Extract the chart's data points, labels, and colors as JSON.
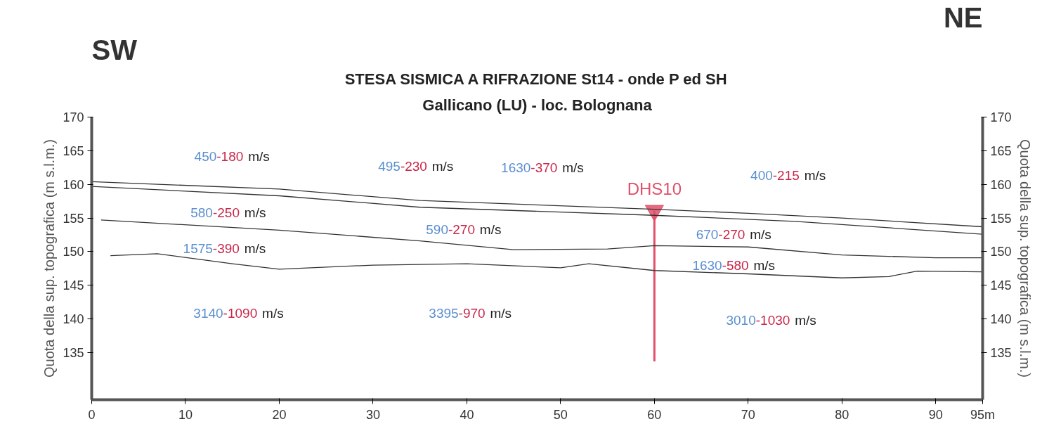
{
  "chart_data": {
    "type": "line",
    "title": "STESA SISMICA A RIFRAZIONE St14 - onde P ed SH",
    "subtitle": "Gallicano (LU) - loc. Bolognana",
    "ylabel": "Quota della sup. topografica (m s.l.m.)",
    "y2label": "Quota della sup. topografica (m s.l.m.)",
    "xlim": [
      0,
      95
    ],
    "ylim": [
      128,
      170
    ],
    "y2lim": [
      128,
      170
    ],
    "xticks": [
      0,
      10,
      20,
      30,
      40,
      50,
      60,
      70,
      80,
      90,
      {
        "value": 95,
        "label": "95m"
      }
    ],
    "yticks": [
      135,
      140,
      145,
      150,
      155,
      160,
      165,
      170
    ],
    "y2ticks": [
      135,
      140,
      145,
      150,
      155,
      160,
      165,
      170
    ],
    "grid": false,
    "line_style": "solid",
    "series": [
      {
        "color": "#e0506a",
        "x": [
          60,
          60
        ],
        "values": [
          156.1,
          133.7
        ]
      },
      {
        "type": "scatter",
        "name": "DHS10",
        "marker": "triangle",
        "color": "#e0506a",
        "x": [
          60
        ],
        "values": [
          156.1
        ]
      },
      {
        "color": "#333333",
        "x": [
          0,
          20,
          35,
          60,
          70,
          80,
          95
        ],
        "values": [
          160.4,
          159.3,
          157.6,
          156.3,
          155.7,
          155.0,
          153.7
        ]
      },
      {
        "color": "#333333",
        "x": [
          0,
          20,
          35,
          60,
          75,
          95
        ],
        "values": [
          159.7,
          158.3,
          156.6,
          155.4,
          154.5,
          152.6
        ]
      },
      {
        "color": "#333333",
        "x": [
          1,
          20,
          35,
          45,
          55,
          60,
          70,
          80,
          90,
          95
        ],
        "values": [
          154.7,
          153.2,
          151.6,
          150.3,
          150.4,
          150.9,
          150.7,
          149.5,
          149.1,
          149.1
        ]
      },
      {
        "color": "#333333",
        "x": [
          2,
          7,
          15,
          20,
          30,
          40,
          50,
          53,
          60,
          70,
          80,
          85,
          88,
          95
        ],
        "values": [
          149.4,
          149.7,
          148.2,
          147.4,
          148.0,
          148.2,
          147.6,
          148.2,
          147.2,
          146.7,
          146.1,
          146.3,
          147.1,
          147.0
        ]
      }
    ],
    "annotations": [
      "SW",
      "NE",
      "450-180 m/s",
      "495-230 m/s",
      "1630-370 m/s",
      "400-215 m/s",
      "580-250 m/s",
      "590-270 m/s",
      "670-270 m/s",
      "1575-390 m/s",
      "1630-580 m/s",
      "3140-1090 m/s",
      "3395-970 m/s",
      "3010-1030 m/s"
    ]
  }
}
